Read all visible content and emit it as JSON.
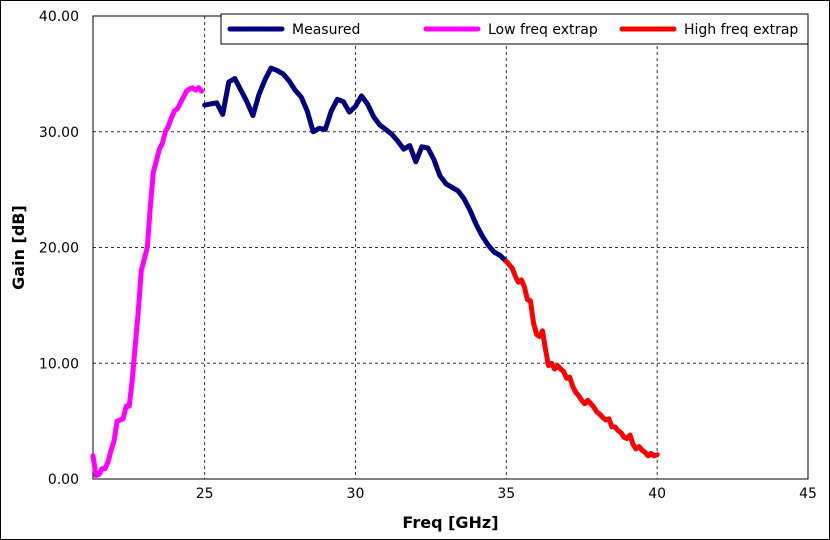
{
  "chart_data": {
    "type": "line",
    "title": "",
    "xlabel": "Freq [GHz]",
    "ylabel": "Gain [dB]",
    "xlim": [
      21.3,
      45
    ],
    "ylim": [
      0,
      40
    ],
    "xticks": [
      25,
      30,
      35,
      40,
      45
    ],
    "xtick_labels": [
      "25",
      "30",
      "35",
      "40",
      "45"
    ],
    "yticks": [
      0,
      10,
      20,
      30,
      40
    ],
    "ytick_labels": [
      "0.00",
      "10.00",
      "20.00",
      "30.00",
      "40.00"
    ],
    "grid": true,
    "legend_position": "top-right",
    "series": [
      {
        "name": "Measured",
        "color": "#000080",
        "x": [
          24.9,
          25.0,
          25.1,
          25.2,
          25.3,
          25.4,
          25.5,
          25.6,
          25.7,
          25.8,
          25.9,
          26.0,
          26.1,
          26.2,
          26.3,
          26.4,
          26.5,
          26.6,
          26.7,
          26.8,
          26.9,
          27.0,
          27.1,
          27.2,
          27.3,
          27.4,
          27.5,
          27.6,
          27.7,
          27.8,
          27.9,
          28.0,
          28.2,
          28.4,
          28.6,
          28.8,
          29.0,
          29.2,
          29.4,
          29.6,
          29.8,
          30.0,
          30.2,
          30.4,
          30.6,
          30.8,
          31.0,
          31.2,
          31.4,
          31.6,
          31.8,
          32.0,
          32.2,
          32.4,
          32.6,
          32.8,
          33.0,
          33.2,
          33.4,
          33.6,
          33.8,
          34.0,
          34.2,
          34.4,
          34.6,
          34.8,
          35.0,
          35.1
        ],
        "y": [
          32.2,
          33.0,
          32.1,
          31.5,
          32.5,
          33.0,
          32.4,
          31.7,
          34.0,
          34.5,
          33.6,
          32.2,
          31.8,
          31.8,
          31.5,
          33.2,
          34.0,
          34.4,
          35.0,
          35.6,
          35.5,
          35.0,
          35.2,
          35.2,
          34.8,
          34.1,
          33.6,
          34.3,
          32.7,
          32.4,
          30.8,
          30.5,
          30.2,
          29.8,
          30.5,
          32.0,
          33.0,
          32.8,
          31.8,
          32.0,
          33.2,
          32.8,
          32.0,
          31.2,
          30.7,
          30.2,
          30.0,
          29.5,
          28.8,
          28.5,
          29.0,
          27.4,
          29.0,
          28.5,
          28.2,
          27.0,
          26.0,
          25.2,
          24.4,
          23.3,
          22.0,
          21.3,
          20.8,
          20.3,
          19.7,
          19.0,
          18.6,
          18.4
        ],
        "x_fix": [
          25.0,
          25.4,
          25.6,
          25.8,
          26.0,
          26.4,
          26.6,
          26.8,
          27.0,
          27.2,
          27.4,
          27.6,
          27.8,
          28.0,
          28.2,
          28.4,
          28.6,
          28.8,
          29.0,
          29.2,
          29.4,
          29.6,
          29.8,
          30.0,
          30.2,
          30.4,
          30.6,
          30.8,
          31.0,
          31.2,
          31.4,
          31.6,
          31.8,
          32.0,
          32.2,
          32.4,
          32.6,
          32.8,
          33.0,
          33.2,
          33.4,
          33.6,
          33.8,
          34.0,
          34.2,
          34.4,
          34.6,
          34.8,
          35.0
        ],
        "y_fix": [
          32.3,
          32.5,
          31.5,
          34.3,
          34.6,
          32.6,
          31.4,
          33.2,
          34.5,
          35.5,
          35.3,
          35.0,
          34.4,
          33.6,
          33.0,
          31.8,
          30.0,
          30.3,
          30.2,
          31.8,
          32.8,
          32.6,
          31.7,
          32.2,
          33.1,
          32.4,
          31.3,
          30.6,
          30.2,
          29.8,
          29.2,
          28.5,
          28.8,
          27.4,
          28.7,
          28.6,
          27.6,
          26.2,
          25.5,
          25.2,
          24.9,
          24.2,
          23.2,
          22.0,
          21.0,
          20.2,
          19.6,
          19.3,
          18.8
        ]
      },
      {
        "name": "Low freq extrap",
        "color": "#ff00ff",
        "x": [
          21.3,
          21.4,
          21.5,
          21.6,
          21.7,
          21.8,
          21.9,
          22.0,
          22.1,
          22.2,
          22.3,
          22.4,
          22.5,
          22.6,
          22.7,
          22.8,
          22.9,
          23.0,
          23.1,
          23.2,
          23.3,
          23.4,
          23.5,
          23.6,
          23.7,
          23.8,
          23.9,
          24.0,
          24.1,
          24.2,
          24.3,
          24.4,
          24.5,
          24.6,
          24.7,
          24.8,
          24.9
        ],
        "y": [
          2.0,
          0.3,
          0.4,
          0.9,
          0.9,
          1.5,
          2.5,
          3.3,
          5.0,
          5.1,
          5.2,
          6.3,
          6.3,
          8.5,
          11.5,
          14.5,
          18.0,
          19.0,
          20.0,
          23.5,
          26.5,
          27.5,
          28.5,
          29.0,
          30.0,
          30.5,
          31.2,
          31.8,
          32.0,
          32.5,
          33.0,
          33.5,
          33.7,
          33.8,
          33.6,
          33.8,
          33.5
        ]
      },
      {
        "name": "High freq extrap",
        "color": "#ff0000",
        "x": [
          35.0,
          35.1,
          35.2,
          35.3,
          35.4,
          35.5,
          35.6,
          35.7,
          35.8,
          35.9,
          36.0,
          36.1,
          36.2,
          36.3,
          36.4,
          36.5,
          36.6,
          36.7,
          36.8,
          36.9,
          37.0,
          37.1,
          37.2,
          37.3,
          37.4,
          37.5,
          37.6,
          37.7,
          37.8,
          37.9,
          38.0,
          38.1,
          38.2,
          38.3,
          38.4,
          38.5,
          38.6,
          38.7,
          38.8,
          38.9,
          39.0,
          39.1,
          39.2,
          39.3,
          39.4,
          39.5,
          39.6,
          39.7,
          39.8,
          39.9,
          40.0
        ],
        "y": [
          18.8,
          18.5,
          18.2,
          17.5,
          17.0,
          17.2,
          16.6,
          15.5,
          15.4,
          13.5,
          12.5,
          12.3,
          12.8,
          11.2,
          9.8,
          10.0,
          9.5,
          9.8,
          9.5,
          9.3,
          8.7,
          8.8,
          8.0,
          7.5,
          7.2,
          6.8,
          6.5,
          6.8,
          6.5,
          6.2,
          5.8,
          5.6,
          5.3,
          5.1,
          5.2,
          4.5,
          4.5,
          4.2,
          4.0,
          3.6,
          3.5,
          3.8,
          3.0,
          2.6,
          2.8,
          2.5,
          2.3,
          2.0,
          2.2,
          2.0,
          2.1
        ]
      }
    ]
  }
}
